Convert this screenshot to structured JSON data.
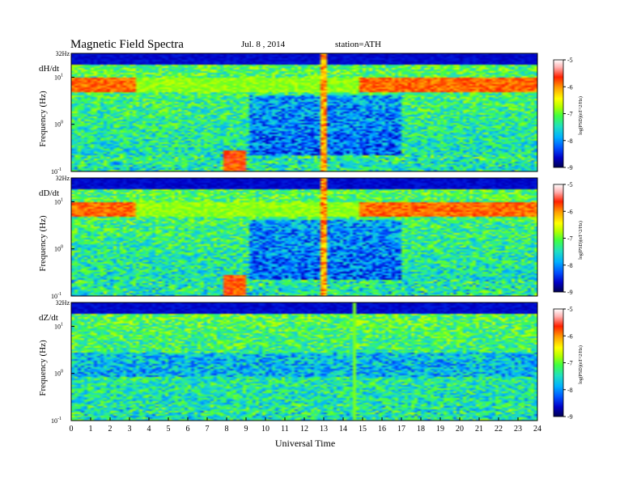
{
  "header": {
    "title": "Magnetic Field Spectra",
    "date": "Jul.  8  , 2014",
    "station": "station=ATH"
  },
  "chart_data": {
    "type": "heatmap",
    "title": "Magnetic Field Spectra",
    "xlabel": "Universal Time",
    "x_ticks": [
      "0",
      "1",
      "2",
      "3",
      "4",
      "5",
      "6",
      "7",
      "8",
      "9",
      "10",
      "11",
      "12",
      "13",
      "14",
      "15",
      "16",
      "17",
      "18",
      "19",
      "20",
      "21",
      "22",
      "23",
      "24"
    ],
    "xlim": [
      0,
      24
    ],
    "colorbar": {
      "label": "log(PSD)(nT^2/Hz)",
      "ticks": [
        "-5",
        "-6",
        "-7",
        "-8",
        "-9"
      ],
      "range": [
        -9,
        -5
      ],
      "colormap": [
        "#000050",
        "#0000c8",
        "#0050ff",
        "#00b0ff",
        "#20e0c0",
        "#40ff40",
        "#b0ff00",
        "#ffff00",
        "#ffa000",
        "#ff2000",
        "#ffb0b0",
        "#ffffff"
      ]
    },
    "panels": [
      {
        "name": "dH/dt",
        "ylabel": "Frequency  (Hz)",
        "y_ticks": [
          "32Hz",
          "10",
          "10",
          "10"
        ],
        "y_tick_exponents": [
          "",
          "1",
          "0",
          "-1"
        ],
        "ylim_hz": [
          0.1,
          32
        ],
        "log_y": true
      },
      {
        "name": "dD/dt",
        "ylabel": "Frequency  (Hz)",
        "y_ticks": [
          "32Hz",
          "10",
          "10",
          "10"
        ],
        "y_tick_exponents": [
          "",
          "1",
          "0",
          "-1"
        ],
        "ylim_hz": [
          0.1,
          32
        ],
        "log_y": true
      },
      {
        "name": "dZ/dt",
        "ylabel": "Frequency  (Hz)",
        "y_ticks": [
          "32Hz",
          "10",
          "10",
          "10"
        ],
        "y_tick_exponents": [
          "",
          "1",
          "0",
          "-1"
        ],
        "ylim_hz": [
          0.1,
          32
        ],
        "log_y": true
      }
    ]
  }
}
